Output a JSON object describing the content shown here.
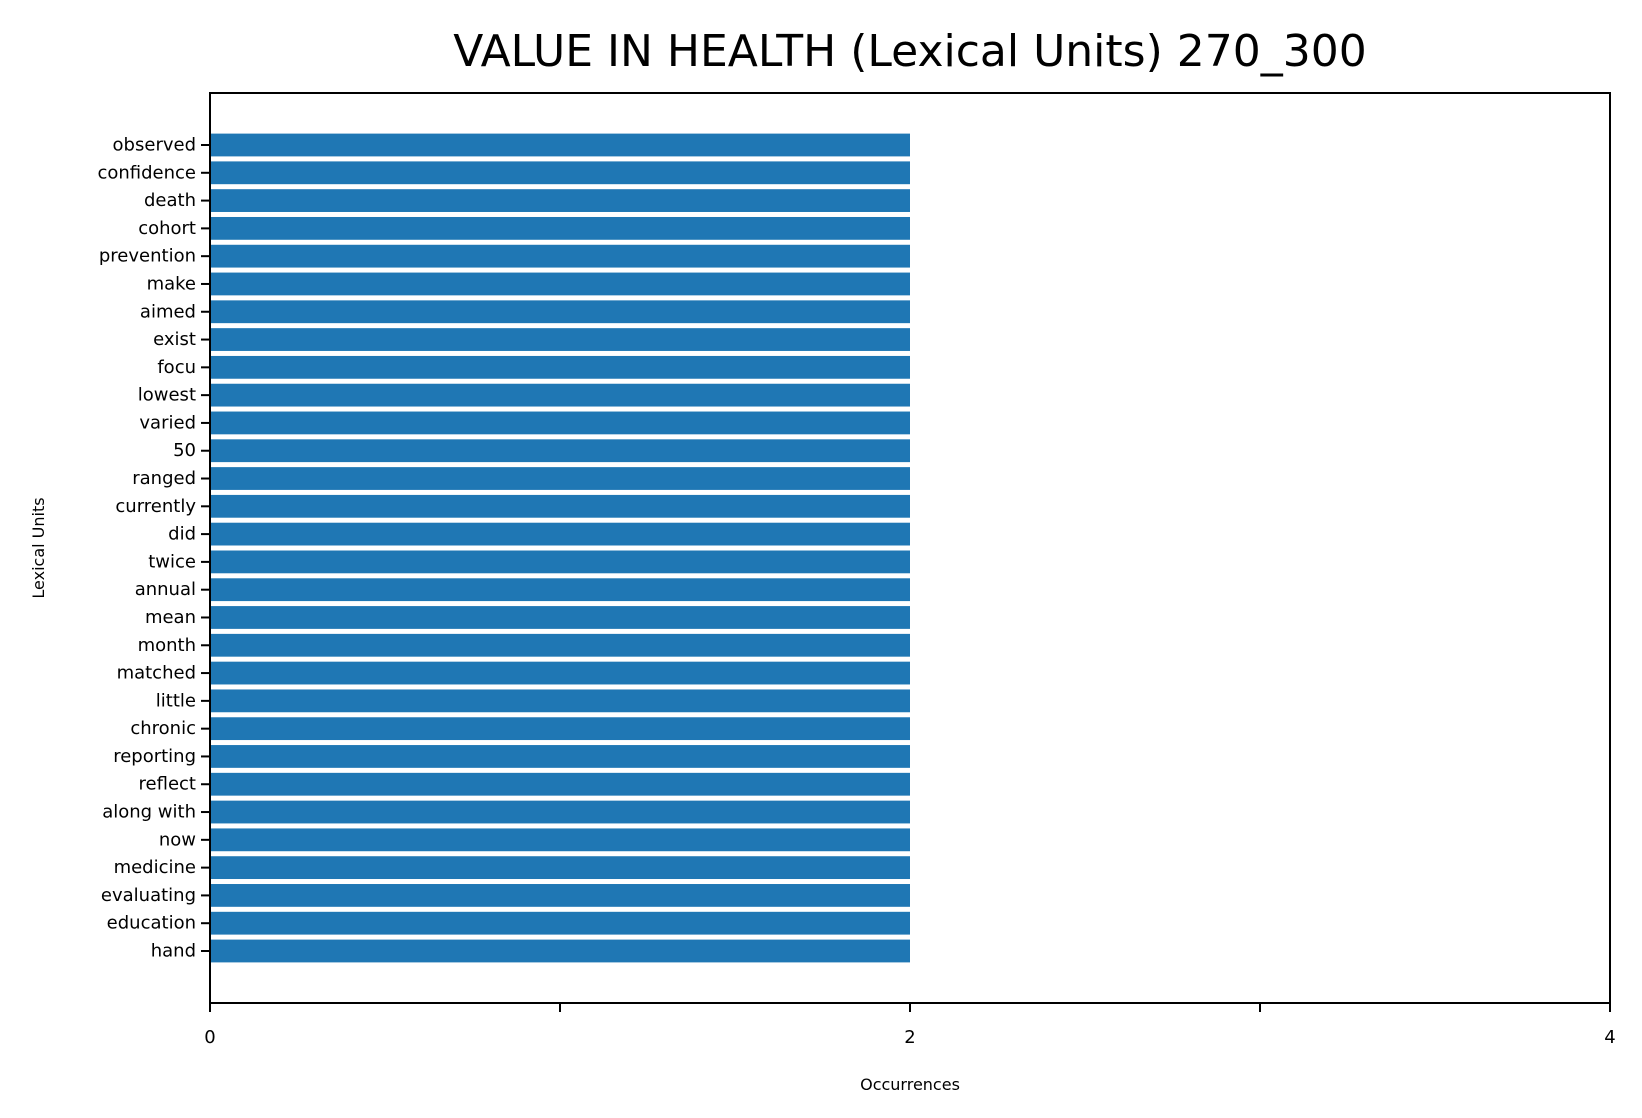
{
  "chart_data": {
    "type": "bar",
    "orientation": "horizontal",
    "title": "VALUE IN HEALTH (Lexical Units) 270_300",
    "xlabel": "Occurrences",
    "ylabel": "Lexical Units",
    "xlim": [
      0,
      4
    ],
    "xticks": [
      {
        "value": 0,
        "label": "0"
      },
      {
        "value": 1,
        "label": ""
      },
      {
        "value": 2,
        "label": "2"
      },
      {
        "value": 3,
        "label": ""
      },
      {
        "value": 4,
        "label": "4"
      }
    ],
    "grid": false,
    "bar_color": "#1f77b4",
    "categories": [
      "observed",
      "confidence",
      "death",
      "cohort",
      "prevention",
      "make",
      "aimed",
      "exist",
      "focu",
      "lowest",
      "varied",
      "50",
      "ranged",
      "currently",
      "did",
      "twice",
      "annual",
      "mean",
      "month",
      "matched",
      "little",
      "chronic",
      "reporting",
      "reflect",
      "along with",
      "now",
      "medicine",
      "evaluating",
      "education",
      "hand"
    ],
    "values": [
      2,
      2,
      2,
      2,
      2,
      2,
      2,
      2,
      2,
      2,
      2,
      2,
      2,
      2,
      2,
      2,
      2,
      2,
      2,
      2,
      2,
      2,
      2,
      2,
      2,
      2,
      2,
      2,
      2,
      2
    ]
  }
}
